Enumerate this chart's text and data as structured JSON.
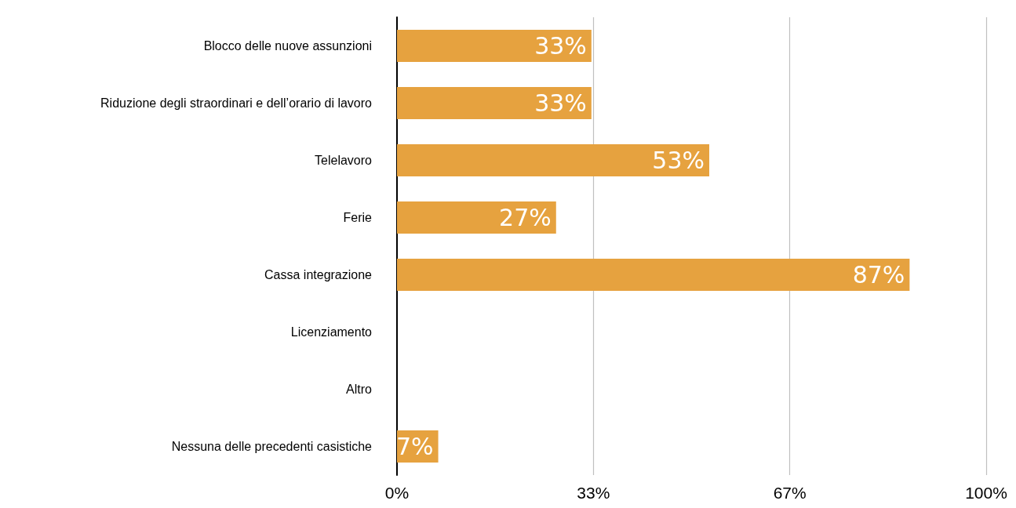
{
  "chart_data": {
    "type": "bar",
    "orientation": "horizontal",
    "categories": [
      "Blocco delle nuove assunzioni",
      "Riduzione degli straordinari e dell’orario di lavoro",
      "Telelavoro",
      "Ferie",
      "Cassa integrazione",
      "Licenziamento",
      "Altro",
      "Nessuna delle precedenti casistiche"
    ],
    "values": [
      33,
      33,
      53,
      27,
      87,
      0,
      0,
      7
    ],
    "value_labels": [
      "33%",
      "33%",
      "53%",
      "27%",
      "87%",
      null,
      null,
      "7%"
    ],
    "color": "#e6a23f",
    "xlim": [
      0,
      100
    ],
    "xticks": [
      {
        "value": 0,
        "label": "0%"
      },
      {
        "value": 33.33,
        "label": "33%"
      },
      {
        "value": 66.67,
        "label": "67%"
      },
      {
        "value": 100,
        "label": "100%"
      }
    ],
    "grid": "x"
  }
}
